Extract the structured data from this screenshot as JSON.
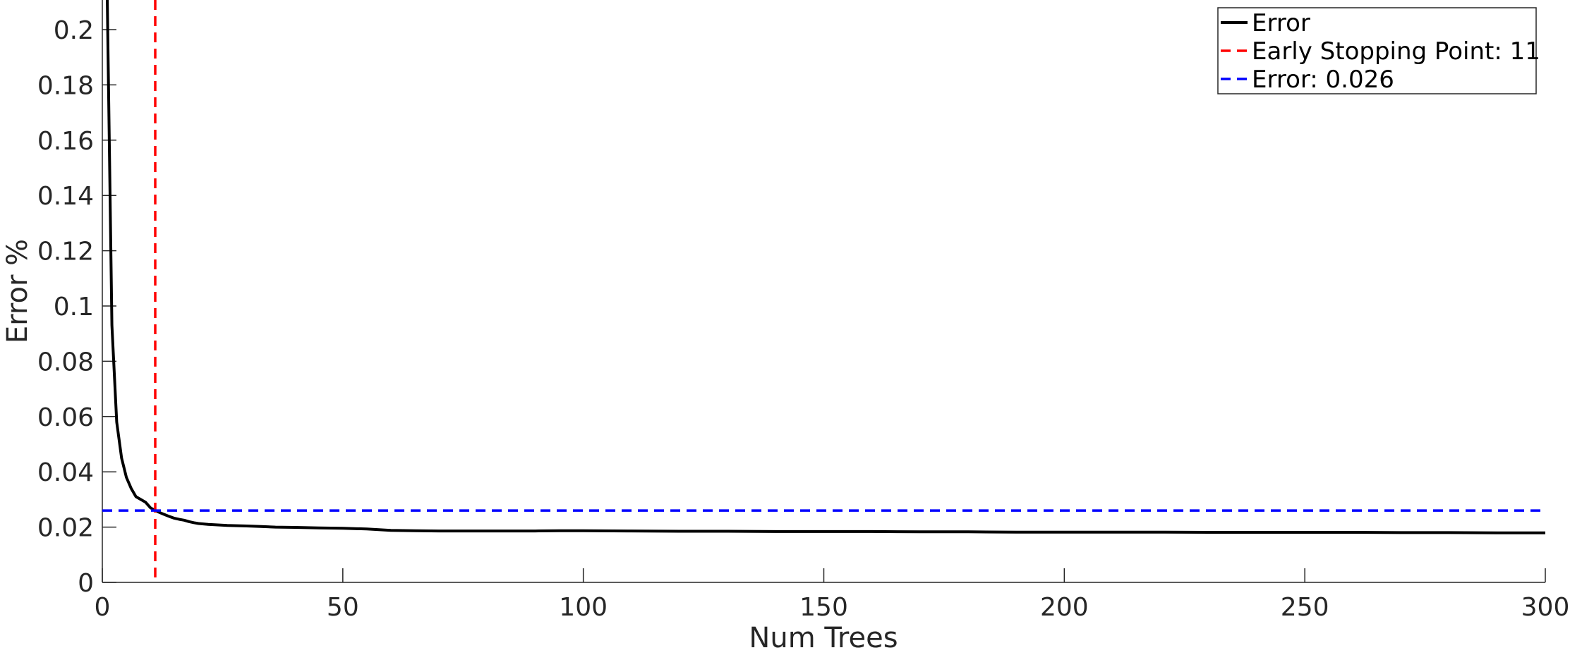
{
  "chart_data": {
    "type": "line",
    "title": "",
    "xlabel": "Num Trees",
    "ylabel": "Error %",
    "xlim": [
      0,
      300
    ],
    "ylim": [
      0,
      0.21
    ],
    "xticks": [
      0,
      50,
      100,
      150,
      200,
      250,
      300
    ],
    "xtick_labels": [
      "0",
      "50",
      "100",
      "150",
      "200",
      "250",
      "300"
    ],
    "yticks": [
      0,
      0.02,
      0.04,
      0.06,
      0.08,
      0.1,
      0.12,
      0.14,
      0.16,
      0.18,
      0.2
    ],
    "ytick_labels": [
      "0",
      "0.02",
      "0.04",
      "0.06",
      "0.08",
      "0.1",
      "0.12",
      "0.14",
      "0.16",
      "0.18",
      "0.2"
    ],
    "grid": false,
    "legend_position": "top-right",
    "series": [
      {
        "name": "Error",
        "color": "#000000",
        "style": "solid",
        "x": [
          1,
          2,
          3,
          4,
          5,
          6,
          7,
          8,
          9,
          10,
          11,
          12,
          13,
          14,
          15,
          16,
          17,
          18,
          19,
          20,
          22,
          24,
          26,
          28,
          30,
          33,
          36,
          40,
          45,
          50,
          55,
          60,
          65,
          70,
          75,
          80,
          85,
          90,
          95,
          100,
          110,
          120,
          130,
          140,
          150,
          160,
          170,
          180,
          190,
          200,
          210,
          220,
          230,
          240,
          250,
          260,
          270,
          280,
          290,
          300
        ],
        "y": [
          0.215,
          0.093,
          0.058,
          0.045,
          0.038,
          0.034,
          0.031,
          0.03,
          0.029,
          0.027,
          0.026,
          0.0252,
          0.0245,
          0.0238,
          0.0232,
          0.0228,
          0.0225,
          0.022,
          0.0216,
          0.0213,
          0.021,
          0.0208,
          0.0206,
          0.0205,
          0.0204,
          0.0202,
          0.02,
          0.0199,
          0.0197,
          0.0196,
          0.0193,
          0.0188,
          0.0187,
          0.0186,
          0.0186,
          0.0186,
          0.0186,
          0.0186,
          0.0187,
          0.0187,
          0.0186,
          0.0185,
          0.0185,
          0.0184,
          0.0184,
          0.0184,
          0.0183,
          0.0183,
          0.0182,
          0.0182,
          0.0182,
          0.0182,
          0.0181,
          0.0181,
          0.0181,
          0.0181,
          0.018,
          0.018,
          0.0179,
          0.0179
        ]
      },
      {
        "name": "Early Stopping Point: 11",
        "color": "#ff0000",
        "style": "dashed",
        "orientation": "vertical",
        "x_value": 11
      },
      {
        "name": "Error: 0.026",
        "color": "#0000ff",
        "style": "dashed",
        "orientation": "horizontal",
        "y_value": 0.026
      }
    ]
  }
}
